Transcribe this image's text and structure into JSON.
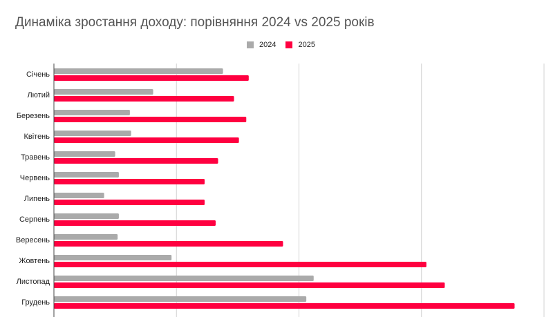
{
  "chart_data": {
    "type": "bar",
    "orientation": "horizontal",
    "title": "Динаміка зростання доходу: порівняння 2024 vs 2025 років",
    "categories": [
      "Січень",
      "Лютий",
      "Березень",
      "Квітень",
      "Травень",
      "Червень",
      "Липень",
      "Серпень",
      "Вересень",
      "Жовтень",
      "Листопад",
      "Грудень"
    ],
    "series": [
      {
        "name": "2024",
        "color": "#aaaaaa",
        "values": [
          1.38,
          0.81,
          0.62,
          0.63,
          0.5,
          0.53,
          0.41,
          0.53,
          0.52,
          0.96,
          2.12,
          2.06
        ]
      },
      {
        "name": "2025",
        "color": "#ff0040",
        "values": [
          1.59,
          1.47,
          1.57,
          1.51,
          1.34,
          1.23,
          1.23,
          1.32,
          1.87,
          3.04,
          3.19,
          3.76
        ]
      }
    ],
    "xlim": [
      0,
      4
    ],
    "x_tick_labels_visible": false,
    "grid": true,
    "legend_position": "top"
  }
}
